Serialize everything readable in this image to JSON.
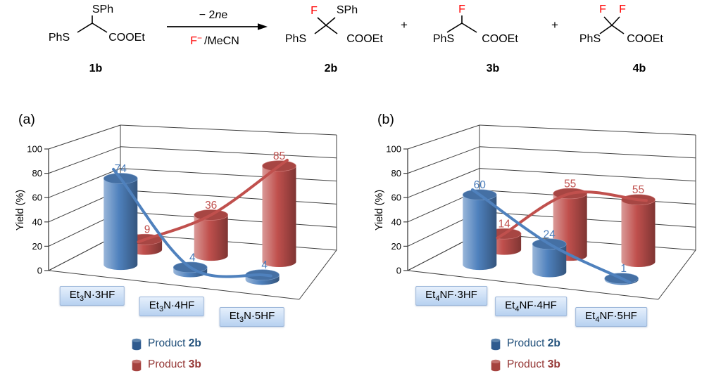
{
  "scheme": {
    "f_color": "#ff0000",
    "c1": {
      "top": "SPh",
      "left": "PhS",
      "right": "COOEt",
      "label": "1b"
    },
    "arrow": {
      "above_pre": "− 2",
      "above_n": "n",
      "above_post": "e",
      "below_f": "F",
      "below_sup": "−",
      "below_rest": "/MeCN"
    },
    "plus1": "+",
    "plus2": "+",
    "c2": {
      "topleft": "F",
      "topright": "SPh",
      "left": "PhS",
      "right": "COOEt",
      "label": "2b"
    },
    "c3": {
      "top": "F",
      "left": "PhS",
      "right": "COOEt",
      "label": "3b"
    },
    "c4": {
      "topleft": "F",
      "topright": "F",
      "left": "PhS",
      "right": "COOEt",
      "label": "4b"
    }
  },
  "chart_data": [
    {
      "type": "bar",
      "variant": "3d-cylinder",
      "panel_label": "(a)",
      "ylabel": "Yield (%)",
      "ylim": [
        0,
        100
      ],
      "yticks": [
        0,
        20,
        40,
        60,
        80,
        100
      ],
      "grid": true,
      "categories": [
        {
          "pre": "Et",
          "sub": "3",
          "post": "N·3HF"
        },
        {
          "pre": "Et",
          "sub": "3",
          "post": "N·4HF"
        },
        {
          "pre": "Et",
          "sub": "3",
          "post": "N·5HF"
        }
      ],
      "series": [
        {
          "name": "Product 2b",
          "color": "#4f81bd",
          "values": [
            74,
            4,
            4
          ]
        },
        {
          "name": "Product 3b",
          "color": "#c0504d",
          "values": [
            9,
            36,
            85
          ]
        }
      ]
    },
    {
      "type": "bar",
      "variant": "3d-cylinder",
      "panel_label": "(b)",
      "ylabel": "Yield (%)",
      "ylim": [
        0,
        100
      ],
      "yticks": [
        0,
        20,
        40,
        60,
        80,
        100
      ],
      "grid": true,
      "categories": [
        {
          "pre": "Et",
          "sub": "4",
          "post": "NF·3HF"
        },
        {
          "pre": "Et",
          "sub": "4",
          "post": "NF·4HF"
        },
        {
          "pre": "Et",
          "sub": "4",
          "post": "NF·5HF"
        }
      ],
      "series": [
        {
          "name": "Product 2b",
          "color": "#4f81bd",
          "values": [
            60,
            24,
            1
          ]
        },
        {
          "name": "Product 3b",
          "color": "#c0504d",
          "values": [
            14,
            55,
            55
          ]
        }
      ]
    }
  ],
  "legend": {
    "items": [
      {
        "pre": "Product ",
        "bold": "2b",
        "text_color": "#1f4e79",
        "icon_color": "#2f5b8f",
        "icon_top_color": "#5b83ad"
      },
      {
        "pre": "Product ",
        "bold": "3b",
        "text_color": "#953735",
        "icon_color": "#a5423f",
        "icon_top_color": "#c2706d"
      }
    ]
  },
  "colors": {
    "grid": "#3f3f3f",
    "value_blue": "#4a7cba",
    "value_red": "#c0504d",
    "box_bg_top": "#e6f0fc",
    "box_bg_bottom": "#b7d1f0",
    "box_border": "#9ab5d9"
  }
}
